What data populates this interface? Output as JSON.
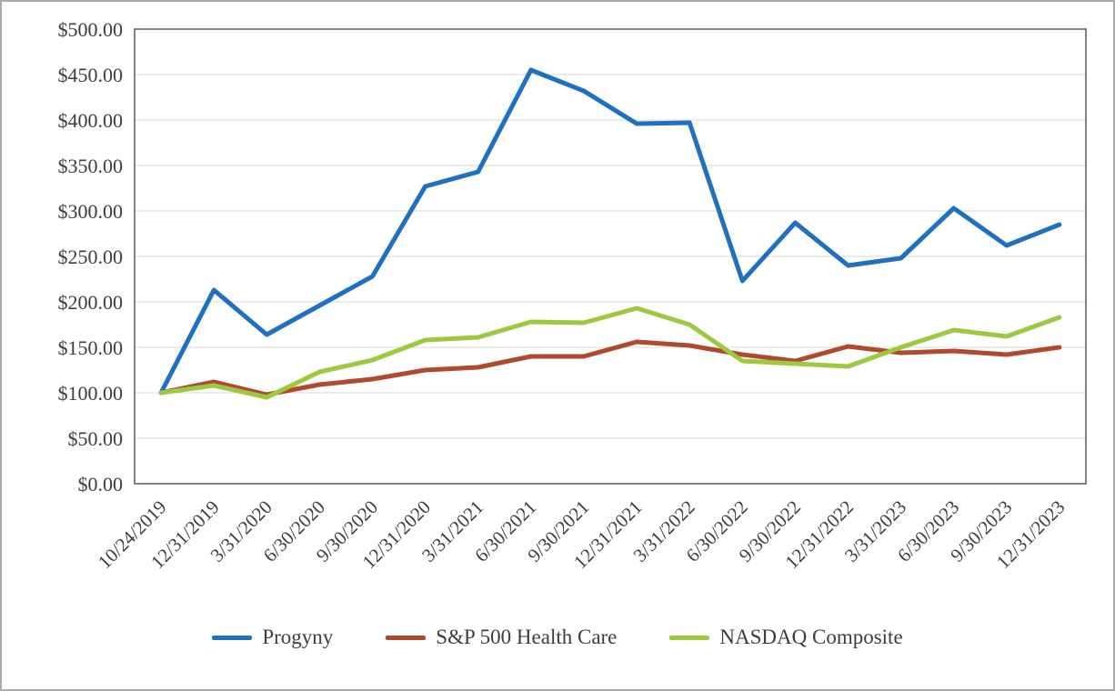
{
  "chart_data": {
    "type": "line",
    "title": "",
    "categories": [
      "10/24/2019",
      "12/31/2019",
      "3/31/2020",
      "6/30/2020",
      "9/30/2020",
      "12/31/2020",
      "3/31/2021",
      "6/30/2021",
      "9/30/2021",
      "12/31/2021",
      "3/31/2022",
      "6/30/2022",
      "9/30/2022",
      "12/31/2022",
      "3/31/2023",
      "6/30/2023",
      "9/30/2023",
      "12/31/2023"
    ],
    "series": [
      {
        "name": "Progyny",
        "color": "#1f70c1",
        "values": [
          100,
          213,
          164,
          196,
          228,
          327,
          343,
          455,
          432,
          396,
          397,
          223,
          287,
          240,
          248,
          303,
          262,
          285
        ]
      },
      {
        "name": "S&P 500 Health Care",
        "color": "#b04a2e",
        "values": [
          100,
          112,
          98,
          109,
          115,
          125,
          128,
          140,
          140,
          156,
          152,
          142,
          135,
          151,
          144,
          146,
          142,
          150
        ]
      },
      {
        "name": "NASDAQ Composite",
        "color": "#9cc93f",
        "values": [
          100,
          108,
          95,
          123,
          136,
          158,
          161,
          178,
          177,
          193,
          175,
          135,
          132,
          129,
          150,
          169,
          162,
          183
        ]
      }
    ],
    "ylim": [
      0,
      500
    ],
    "y_ticks": [
      "$0.00",
      "$50.00",
      "$100.00",
      "$150.00",
      "$200.00",
      "$250.00",
      "$300.00",
      "$350.00",
      "$400.00",
      "$450.00",
      "$500.00"
    ],
    "grid": true,
    "legend_position": "bottom"
  },
  "colors": {
    "grid": "#d9d9d9",
    "plot_border": "#595959",
    "text": "#3d3d3d",
    "frame_border": "#ababab"
  }
}
